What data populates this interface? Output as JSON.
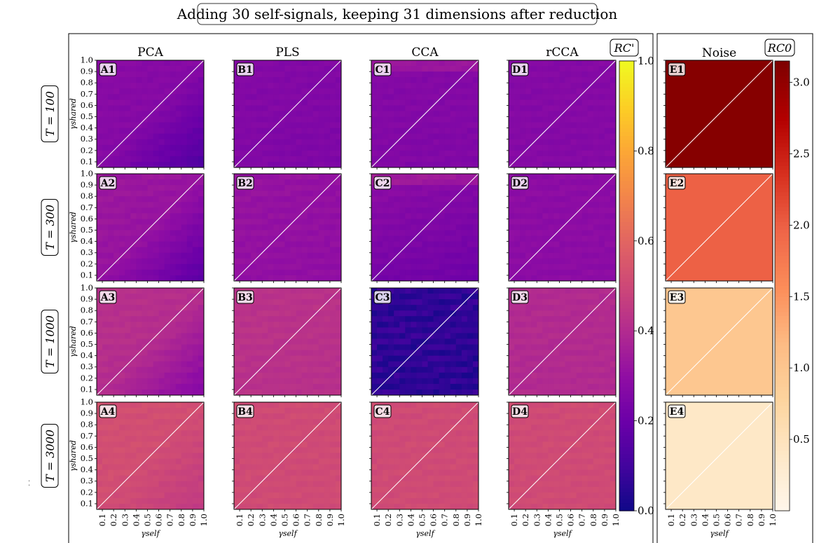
{
  "chart_data": {
    "type": "heatmap",
    "title": "Adding 30 self-signals, keeping 31 dimensions after reduction",
    "xlabel": "γself",
    "ylabel": "γshared",
    "x_ticks": [
      "0.1",
      "0.2",
      "0.3",
      "0.4",
      "0.5",
      "0.6",
      "0.7",
      "0.8",
      "0.9",
      "1.0"
    ],
    "y_ticks": [
      "0.1",
      "0.2",
      "0.3",
      "0.4",
      "0.5",
      "0.6",
      "0.7",
      "0.8",
      "0.9",
      "1.0"
    ],
    "xlim": [
      0.05,
      1.0
    ],
    "ylim": [
      0.05,
      1.0
    ],
    "column_titles": [
      "PCA",
      "PLS",
      "CCA",
      "rCCA",
      "Noise"
    ],
    "row_labels": [
      "T = 100",
      "T = 300",
      "T = 1000",
      "T = 3000"
    ],
    "panel_labels": [
      [
        "A1",
        "B1",
        "C1",
        "D1",
        "E1"
      ],
      [
        "A2",
        "B2",
        "C2",
        "D2",
        "E2"
      ],
      [
        "A3",
        "B3",
        "C3",
        "D3",
        "E3"
      ],
      [
        "A4",
        "B4",
        "C4",
        "D4",
        "E4"
      ]
    ],
    "colorbar_main": {
      "label": "RC'",
      "colormap": "plasma",
      "range": [
        0.0,
        1.0
      ],
      "ticks": [
        "0.0",
        "0.2",
        "0.4",
        "0.6",
        "0.8",
        "1.0"
      ]
    },
    "colorbar_noise": {
      "label": "RC0",
      "colormap": "OrRd",
      "range": [
        0.0,
        3.15
      ],
      "ticks": [
        "0.5",
        "1.0",
        "1.5",
        "2.0",
        "2.5",
        "3.0"
      ]
    },
    "panels_approx_RC": {
      "PCA": [
        [
          0.22,
          0.28
        ],
        [
          0.26,
          0.33
        ],
        [
          0.36,
          0.42
        ],
        [
          0.5,
          0.53
        ]
      ],
      "PLS": [
        [
          0.26,
          0.28
        ],
        [
          0.31,
          0.33
        ],
        [
          0.43,
          0.44
        ],
        [
          0.52,
          0.52
        ]
      ],
      "CCA": [
        [
          0.27,
          0.28
        ],
        [
          0.24,
          0.3
        ],
        [
          0.08,
          0.09
        ],
        [
          0.52,
          0.52
        ]
      ],
      "rCCA": [
        [
          0.28,
          0.28
        ],
        [
          0.3,
          0.3
        ],
        [
          0.41,
          0.41
        ],
        [
          0.52,
          0.52
        ]
      ],
      "Noise": [
        3.1,
        2.0,
        1.0,
        0.4
      ]
    },
    "diagonal_line": "y = x",
    "grid": false
  }
}
